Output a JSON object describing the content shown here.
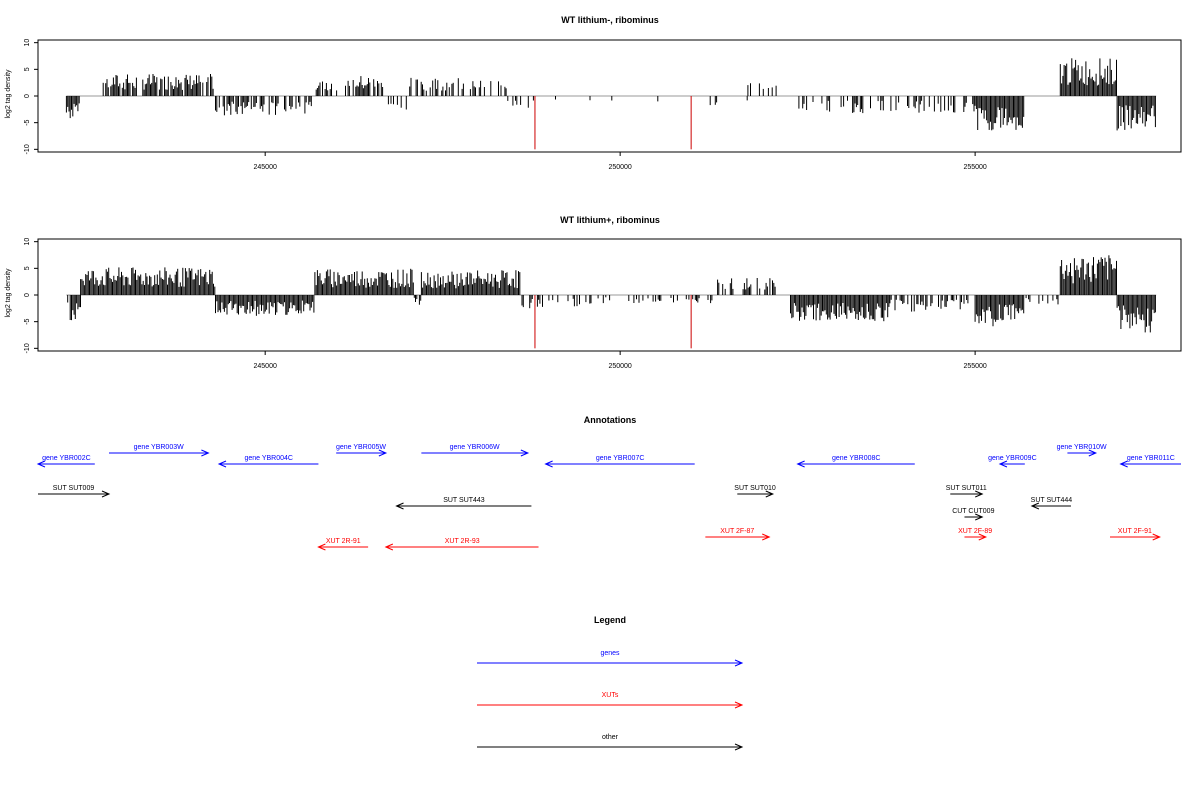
{
  "chart_data": [
    {
      "type": "bar",
      "title": "WT lithium-, ribominus",
      "ylabel": "log2 tag density",
      "xlim": [
        241800,
        257900
      ],
      "ylim": [
        -10.5,
        10.5
      ],
      "x_ticks": [
        245000,
        250000,
        255000
      ],
      "x_tick_labels": [
        "245000",
        "250000",
        "255000"
      ],
      "y_ticks": [
        -10,
        -5,
        0,
        5,
        10
      ],
      "y_tick_labels": [
        "-10",
        "-5",
        "0",
        "5",
        "10"
      ],
      "grid": false,
      "segments": [
        {
          "x0": 242200,
          "x1": 242400,
          "mean": -3.5,
          "density": 0.8
        },
        {
          "x0": 242700,
          "x1": 244300,
          "mean": 3.2,
          "density": 0.75
        },
        {
          "x0": 244300,
          "x1": 245700,
          "mean": -2.8,
          "density": 0.6
        },
        {
          "x0": 245700,
          "x1": 246700,
          "mean": 3.0,
          "density": 0.55
        },
        {
          "x0": 246700,
          "x1": 247000,
          "mean": -2.0,
          "density": 0.15
        },
        {
          "x0": 247000,
          "x1": 247800,
          "mean": 2.8,
          "density": 0.4
        },
        {
          "x0": 247800,
          "x1": 248400,
          "mean": 2.5,
          "density": 0.35
        },
        {
          "x0": 248400,
          "x1": 249000,
          "mean": -1.8,
          "density": 0.15
        },
        {
          "x0": 249000,
          "x1": 252000,
          "mean": -1.5,
          "density": 0.04
        },
        {
          "x0": 251800,
          "x1": 252200,
          "mean": 2.0,
          "density": 0.2
        },
        {
          "x0": 252500,
          "x1": 255000,
          "mean": -2.5,
          "density": 0.35
        },
        {
          "x0": 255000,
          "x1": 255700,
          "mean": -5.0,
          "density": 1.0
        },
        {
          "x0": 256200,
          "x1": 257000,
          "mean": 5.5,
          "density": 1.0
        },
        {
          "x0": 257000,
          "x1": 257550,
          "mean": -5.0,
          "density": 1.0
        }
      ],
      "red_lines": [
        {
          "x": 248800,
          "y": -10
        },
        {
          "x": 251000,
          "y": -10
        }
      ]
    },
    {
      "type": "bar",
      "title": "WT lithium+, ribominus",
      "ylabel": "log2 tag density",
      "xlim": [
        241800,
        257900
      ],
      "ylim": [
        -10.5,
        10.5
      ],
      "x_ticks": [
        245000,
        250000,
        255000
      ],
      "x_tick_labels": [
        "245000",
        "250000",
        "255000"
      ],
      "y_ticks": [
        -10,
        -5,
        0,
        5,
        10
      ],
      "y_tick_labels": [
        "-10",
        "-5",
        "0",
        "5",
        "10"
      ],
      "grid": false,
      "segments": [
        {
          "x0": 242200,
          "x1": 242400,
          "mean": -3.8,
          "density": 0.8
        },
        {
          "x0": 242400,
          "x1": 244300,
          "mean": 4.0,
          "density": 1.0
        },
        {
          "x0": 244300,
          "x1": 245700,
          "mean": -3.0,
          "density": 1.0
        },
        {
          "x0": 245700,
          "x1": 247100,
          "mean": 3.8,
          "density": 1.0
        },
        {
          "x0": 247100,
          "x1": 247200,
          "mean": -1.5,
          "density": 0.5
        },
        {
          "x0": 247200,
          "x1": 248600,
          "mean": 3.6,
          "density": 1.0
        },
        {
          "x0": 248600,
          "x1": 249600,
          "mean": -2.0,
          "density": 0.35
        },
        {
          "x0": 249600,
          "x1": 251300,
          "mean": -1.2,
          "density": 0.3
        },
        {
          "x0": 251300,
          "x1": 252200,
          "mean": 2.5,
          "density": 0.5
        },
        {
          "x0": 252400,
          "x1": 253800,
          "mean": -3.8,
          "density": 1.0
        },
        {
          "x0": 253800,
          "x1": 255000,
          "mean": -2.5,
          "density": 0.6
        },
        {
          "x0": 255000,
          "x1": 255700,
          "mean": -4.5,
          "density": 1.0
        },
        {
          "x0": 255700,
          "x1": 256200,
          "mean": -1.5,
          "density": 0.3
        },
        {
          "x0": 256200,
          "x1": 257000,
          "mean": 5.8,
          "density": 1.0
        },
        {
          "x0": 257000,
          "x1": 257550,
          "mean": -5.5,
          "density": 1.0
        }
      ],
      "red_lines": [
        {
          "x": 248800,
          "y": -10
        },
        {
          "x": 251000,
          "y": -10
        }
      ]
    },
    {
      "type": "annotation",
      "title": "Annotations",
      "xlim": [
        241800,
        257900
      ],
      "colors": {
        "gene": "#0000ff",
        "xut": "#ff0000",
        "other": "#000000"
      },
      "features": [
        {
          "label": "gene YBR002C",
          "kind": "gene",
          "x0": 241800,
          "x1": 242600,
          "dir": "left",
          "row": 0
        },
        {
          "label": "gene YBR003W",
          "kind": "gene",
          "x0": 242800,
          "x1": 244200,
          "dir": "right",
          "row": -1
        },
        {
          "label": "gene YBR004C",
          "kind": "gene",
          "x0": 244350,
          "x1": 245750,
          "dir": "left",
          "row": 0
        },
        {
          "label": "gene YBR005W",
          "kind": "gene",
          "x0": 246000,
          "x1": 246700,
          "dir": "right",
          "row": -1
        },
        {
          "label": "gene YBR006W",
          "kind": "gene",
          "x0": 247200,
          "x1": 248700,
          "dir": "right",
          "row": -1
        },
        {
          "label": "gene YBR007C",
          "kind": "gene",
          "x0": 248950,
          "x1": 251050,
          "dir": "left",
          "row": 0
        },
        {
          "label": "gene YBR008C",
          "kind": "gene",
          "x0": 252500,
          "x1": 254150,
          "dir": "left",
          "row": 0
        },
        {
          "label": "gene YBR009C",
          "kind": "gene",
          "x0": 255350,
          "x1": 255700,
          "dir": "left",
          "row": 0
        },
        {
          "label": "gene YBR010W",
          "kind": "gene",
          "x0": 256300,
          "x1": 256700,
          "dir": "right",
          "row": -1
        },
        {
          "label": "gene YBR011C",
          "kind": "gene",
          "x0": 257050,
          "x1": 257900,
          "dir": "left",
          "row": 0
        },
        {
          "label": "SUT SUT009",
          "kind": "other",
          "x0": 241800,
          "x1": 242800,
          "dir": "right",
          "row": 1
        },
        {
          "label": "SUT SUT443",
          "kind": "other",
          "x0": 246850,
          "x1": 248750,
          "dir": "left",
          "row": 2
        },
        {
          "label": "SUT SUT010",
          "kind": "other",
          "x0": 251650,
          "x1": 252150,
          "dir": "right",
          "row": 1
        },
        {
          "label": "SUT SUT011",
          "kind": "other",
          "x0": 254650,
          "x1": 255100,
          "dir": "right",
          "row": 1
        },
        {
          "label": "SUT SUT444",
          "kind": "other",
          "x0": 255800,
          "x1": 256350,
          "dir": "left",
          "row": 2
        },
        {
          "label": "CUT CUT009",
          "kind": "other",
          "x0": 254850,
          "x1": 255100,
          "dir": "right",
          "row": 3
        },
        {
          "label": "XUT 2R-91",
          "kind": "xut",
          "x0": 245750,
          "x1": 246450,
          "dir": "left",
          "row": 4
        },
        {
          "label": "XUT 2R-93",
          "kind": "xut",
          "x0": 246700,
          "x1": 248850,
          "dir": "left",
          "row": 4
        },
        {
          "label": "XUT 2F-87",
          "kind": "xut",
          "x0": 251200,
          "x1": 252100,
          "dir": "right",
          "row": 3.5
        },
        {
          "label": "XUT 2F-89",
          "kind": "xut",
          "x0": 254850,
          "x1": 255150,
          "dir": "right",
          "row": 3.5
        },
        {
          "label": "XUT 2F-91",
          "kind": "xut",
          "x0": 256900,
          "x1": 257600,
          "dir": "right",
          "row": 3.5
        }
      ]
    },
    {
      "type": "legend",
      "title": "Legend",
      "entries": [
        {
          "label": "genes",
          "color": "#0000ff"
        },
        {
          "label": "XUTs",
          "color": "#ff0000"
        },
        {
          "label": "other",
          "color": "#000000"
        }
      ]
    }
  ]
}
